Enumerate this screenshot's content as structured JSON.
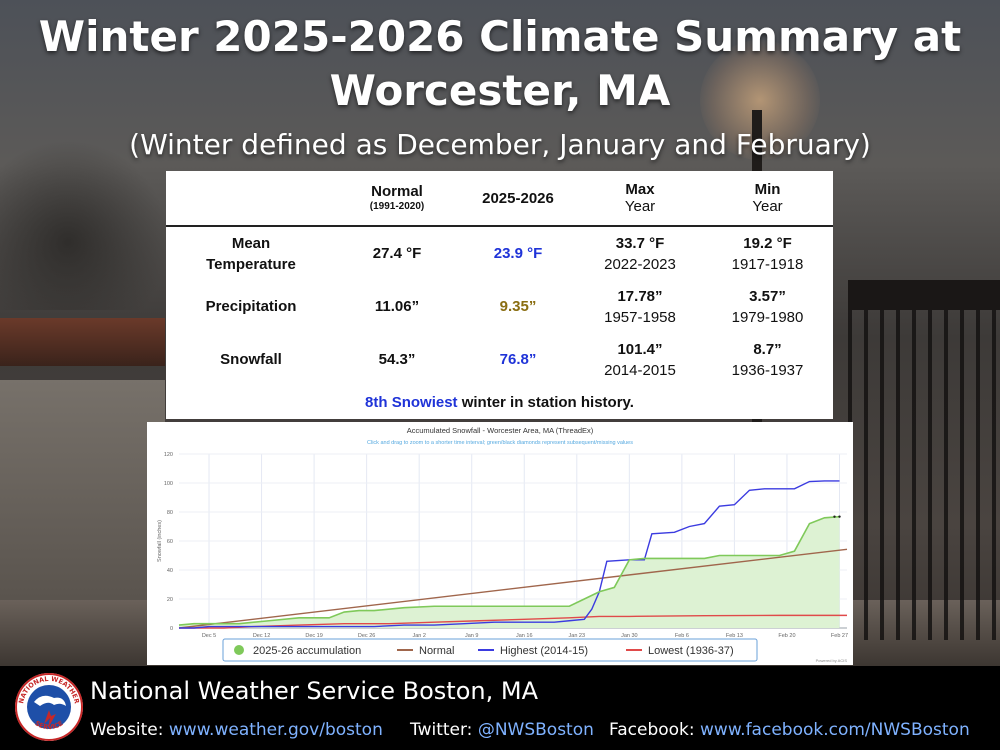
{
  "title": {
    "line1": "Winter 2025-2026 Climate Summary at",
    "line2": "Worcester, MA",
    "subtitle": "(Winter defined as December, January and February)"
  },
  "summary_table": {
    "headers": {
      "normal": "Normal",
      "normal_period": "(1991-2020)",
      "current": "2025-2026",
      "max_line1": "Max",
      "max_line2": "Year",
      "min_line1": "Min",
      "min_line2": "Year"
    },
    "rows": [
      {
        "label_line1": "Mean",
        "label_line2": "Temperature",
        "normal": "27.4 °F",
        "current": "23.9 °F",
        "max": "33.7 °F",
        "max_year": "2022-2023",
        "min": "19.2 °F",
        "min_year": "1917-1918"
      },
      {
        "label_line1": "Precipitation",
        "label_line2": "",
        "normal": "11.06”",
        "current": "9.35”",
        "max": "17.78”",
        "max_year": "1957-1958",
        "min": "3.57”",
        "min_year": "1979-1980"
      },
      {
        "label_line1": "Snowfall",
        "label_line2": "",
        "normal": "54.3”",
        "current": "76.8”",
        "max": "101.4”",
        "max_year": "2014-2015",
        "min": "8.7”",
        "min_year": "1936-1937"
      }
    ],
    "footnote_highlight": "8th Snowiest",
    "footnote_rest": " winter in station history."
  },
  "chart_data": {
    "type": "line",
    "title": "Accumulated Snowfall - Worcester Area, MA (ThreadEx)",
    "subtitle": "Click and drag to zoom to a shorter time interval; green/black diamonds represent subsequent/missing values",
    "xlabel": "",
    "ylabel": "Snowfall (inches)",
    "ylim": [
      0,
      120
    ],
    "yticks": [
      0,
      20,
      40,
      60,
      80,
      100,
      120
    ],
    "x_day_range": [
      0,
      89
    ],
    "x_ticks": [
      {
        "day": 4,
        "label": "Dec 5"
      },
      {
        "day": 11,
        "label": "Dec 12"
      },
      {
        "day": 18,
        "label": "Dec 19"
      },
      {
        "day": 25,
        "label": "Dec 26"
      },
      {
        "day": 32,
        "label": "Jan 2"
      },
      {
        "day": 39,
        "label": "Jan 9"
      },
      {
        "day": 46,
        "label": "Jan 16"
      },
      {
        "day": 53,
        "label": "Jan 23"
      },
      {
        "day": 60,
        "label": "Jan 30"
      },
      {
        "day": 67,
        "label": "Feb 6"
      },
      {
        "day": 74,
        "label": "Feb 13"
      },
      {
        "day": 81,
        "label": "Feb 20"
      },
      {
        "day": 88,
        "label": "Feb 27"
      }
    ],
    "series": [
      {
        "name": "2025-26 accumulation",
        "color": "#7fc95a",
        "fill": "#ddf2d3",
        "x": [
          0,
          2,
          4,
          8,
          12,
          16,
          20,
          22,
          24,
          26,
          30,
          34,
          38,
          40,
          44,
          48,
          52,
          54,
          56,
          58,
          60,
          62,
          66,
          70,
          72,
          76,
          80,
          82,
          84,
          86,
          88
        ],
        "y": [
          2,
          3,
          3,
          3,
          5,
          7,
          7,
          11,
          12,
          12,
          14,
          15,
          15,
          15,
          15,
          15,
          15,
          20,
          25,
          28,
          47,
          48,
          48,
          48,
          50,
          50,
          50,
          53,
          72,
          76,
          76.8
        ]
      },
      {
        "name": "Normal",
        "color": "#a0664c",
        "x": [
          0,
          89
        ],
        "y": [
          0,
          54.3
        ]
      },
      {
        "name": "Highest (2014-15)",
        "color": "#3b3be0",
        "x": [
          0,
          2,
          4,
          8,
          12,
          16,
          20,
          22,
          26,
          30,
          34,
          38,
          42,
          46,
          50,
          52,
          54,
          55,
          56,
          57,
          60,
          62,
          63,
          66,
          68,
          70,
          72,
          74,
          76,
          78,
          82,
          84,
          86,
          88
        ],
        "y": [
          0,
          0,
          1,
          1,
          1,
          1,
          1,
          1,
          1,
          2,
          2,
          3,
          4,
          4,
          4,
          5,
          6,
          13,
          25,
          46,
          47,
          47,
          65,
          66,
          70,
          72,
          84,
          85,
          95,
          96,
          96,
          101,
          101.4,
          101.4
        ]
      },
      {
        "name": "Lowest (1936-37)",
        "color": "#e04a4a",
        "x": [
          0,
          6,
          10,
          16,
          22,
          28,
          34,
          40,
          46,
          52,
          56,
          60,
          70,
          80,
          89
        ],
        "y": [
          0,
          0,
          1,
          2,
          3,
          3,
          4,
          5,
          6,
          7,
          8,
          8,
          8.5,
          8.7,
          8.7
        ]
      }
    ],
    "legend_position": "bottom",
    "credit": "Powered by ACIS"
  },
  "footer": {
    "organization": "National Weather Service Boston, MA",
    "website_label": "Website:",
    "website": "www.weather.gov/boston",
    "twitter_label": "Twitter:",
    "twitter": "@NWSBoston",
    "facebook_label": "Facebook:",
    "facebook": "www.facebook.com/NWSBoston",
    "logo_text_top": "NATIONAL WEATHER",
    "logo_text_bottom": "SERVICE"
  },
  "colors": {
    "highlight_blue": "#1f33d8",
    "highlight_olive": "#8a6e12",
    "link_blue": "#7fb2ff"
  }
}
